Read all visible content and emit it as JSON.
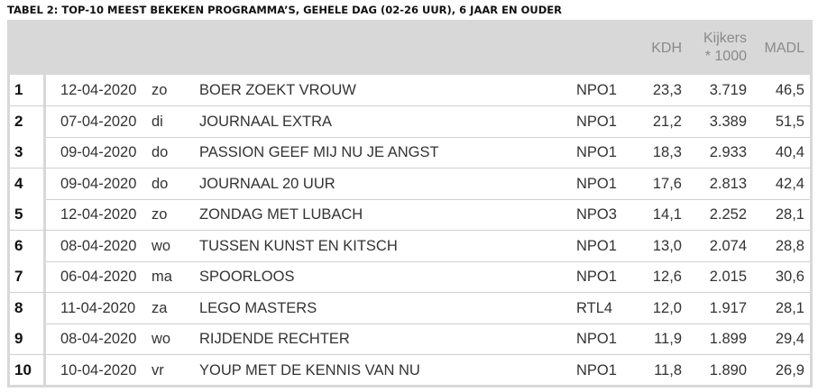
{
  "title": "TABEL 2: TOP-10 MEEST BEKEKEN PROGRAMMA’S, GEHELE DAG (02-26 UUR), 6 JAAR EN OUDER",
  "headers": {
    "kdh": "KDH",
    "kijkers_line1": "Kijkers",
    "kijkers_line2": "* 1000",
    "madl": "MADL"
  },
  "rows": [
    {
      "rank": "1",
      "date": "12-04-2020",
      "day": "zo",
      "program": "BOER ZOEKT VROUW",
      "channel": "NPO1",
      "kdh": "23,3",
      "viewers": "3.719",
      "madl": "46,5"
    },
    {
      "rank": "2",
      "date": "07-04-2020",
      "day": "di",
      "program": "JOURNAAL EXTRA",
      "channel": "NPO1",
      "kdh": "21,2",
      "viewers": "3.389",
      "madl": "51,5"
    },
    {
      "rank": "3",
      "date": "09-04-2020",
      "day": "do",
      "program": "PASSION GEEF MIJ NU JE ANGST",
      "channel": "NPO1",
      "kdh": "18,3",
      "viewers": "2.933",
      "madl": "40,4"
    },
    {
      "rank": "4",
      "date": "09-04-2020",
      "day": "do",
      "program": "JOURNAAL 20 UUR",
      "channel": "NPO1",
      "kdh": "17,6",
      "viewers": "2.813",
      "madl": "42,4"
    },
    {
      "rank": "5",
      "date": "12-04-2020",
      "day": "zo",
      "program": "ZONDAG MET LUBACH",
      "channel": "NPO3",
      "kdh": "14,1",
      "viewers": "2.252",
      "madl": "28,1"
    },
    {
      "rank": "6",
      "date": "08-04-2020",
      "day": "wo",
      "program": "TUSSEN KUNST EN KITSCH",
      "channel": "NPO1",
      "kdh": "13,0",
      "viewers": "2.074",
      "madl": "28,8"
    },
    {
      "rank": "7",
      "date": "06-04-2020",
      "day": "ma",
      "program": "SPOORLOOS",
      "channel": "NPO1",
      "kdh": "12,6",
      "viewers": "2.015",
      "madl": "30,6"
    },
    {
      "rank": "8",
      "date": "11-04-2020",
      "day": "za",
      "program": "LEGO MASTERS",
      "channel": "RTL4",
      "kdh": "12,0",
      "viewers": "1.917",
      "madl": "28,1"
    },
    {
      "rank": "9",
      "date": "08-04-2020",
      "day": "wo",
      "program": "RIJDENDE RECHTER",
      "channel": "NPO1",
      "kdh": "11,9",
      "viewers": "1.899",
      "madl": "29,4"
    },
    {
      "rank": "10",
      "date": "10-04-2020",
      "day": "vr",
      "program": "YOUP MET DE KENNIS VAN NU",
      "channel": "NPO1",
      "kdh": "11,8",
      "viewers": "1.890",
      "madl": "26,9"
    }
  ]
}
